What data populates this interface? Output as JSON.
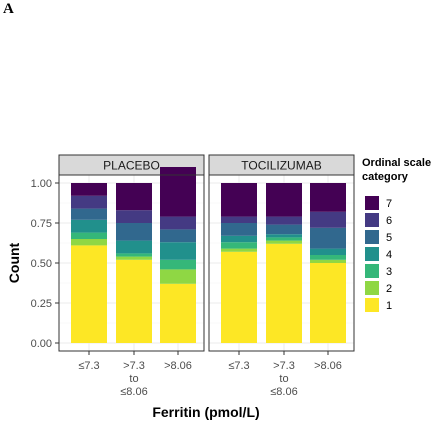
{
  "panel_label": "A",
  "chart_data": {
    "type": "bar",
    "stacked": true,
    "facets": [
      "PLACEBO",
      "TOCILIZUMAB"
    ],
    "categories": [
      [
        "≤7.3"
      ],
      [
        ">7.3",
        "to",
        "≤8.06"
      ],
      [
        ">8.06"
      ]
    ],
    "xlabel": "Ferritin (pmol/L)",
    "ylabel": "Count",
    "ylim": [
      0,
      1
    ],
    "yticks": [
      "0.00",
      "0.25",
      "0.50",
      "0.75",
      "1.00"
    ],
    "legend": {
      "title": [
        "Ordinal scale",
        "category"
      ],
      "position": "right",
      "entries": [
        "7",
        "6",
        "5",
        "4",
        "3",
        "2",
        "1"
      ]
    },
    "colors": {
      "1": "#FDE725",
      "2": "#8FD744",
      "3": "#35B779",
      "4": "#21908C",
      "5": "#31688E",
      "6": "#443A83",
      "7": "#440154"
    },
    "series_order": [
      "1",
      "2",
      "3",
      "4",
      "5",
      "6",
      "7"
    ],
    "data": [
      {
        "facet": "PLACEBO",
        "category": "≤7.3",
        "values": {
          "1": 0.61,
          "2": 0.04,
          "3": 0.04,
          "4": 0.08,
          "5": 0.07,
          "6": 0.08,
          "7": 0.08
        }
      },
      {
        "facet": "PLACEBO",
        "category": ">7.3 to ≤8.06",
        "values": {
          "1": 0.52,
          "2": 0.02,
          "3": 0.02,
          "4": 0.08,
          "5": 0.11,
          "6": 0.08,
          "7": 0.17
        }
      },
      {
        "facet": "PLACEBO",
        "category": ">8.06",
        "values": {
          "1": 0.37,
          "2": 0.09,
          "3": 0.06,
          "4": 0.11,
          "5": 0.08,
          "6": 0.08,
          "7": 0.31
        }
      },
      {
        "facet": "TOCILIZUMAB",
        "category": "≤7.3",
        "values": {
          "1": 0.57,
          "2": 0.02,
          "3": 0.04,
          "4": 0.04,
          "5": 0.08,
          "6": 0.04,
          "7": 0.21
        }
      },
      {
        "facet": "TOCILIZUMAB",
        "category": ">7.3 to ≤8.06",
        "values": {
          "1": 0.62,
          "2": 0.02,
          "3": 0.02,
          "4": 0.02,
          "5": 0.06,
          "6": 0.05,
          "7": 0.21
        }
      },
      {
        "facet": "TOCILIZUMAB",
        "category": ">8.06",
        "values": {
          "1": 0.5,
          "2": 0.02,
          "3": 0.03,
          "4": 0.04,
          "5": 0.13,
          "6": 0.1,
          "7": 0.18
        }
      }
    ]
  }
}
